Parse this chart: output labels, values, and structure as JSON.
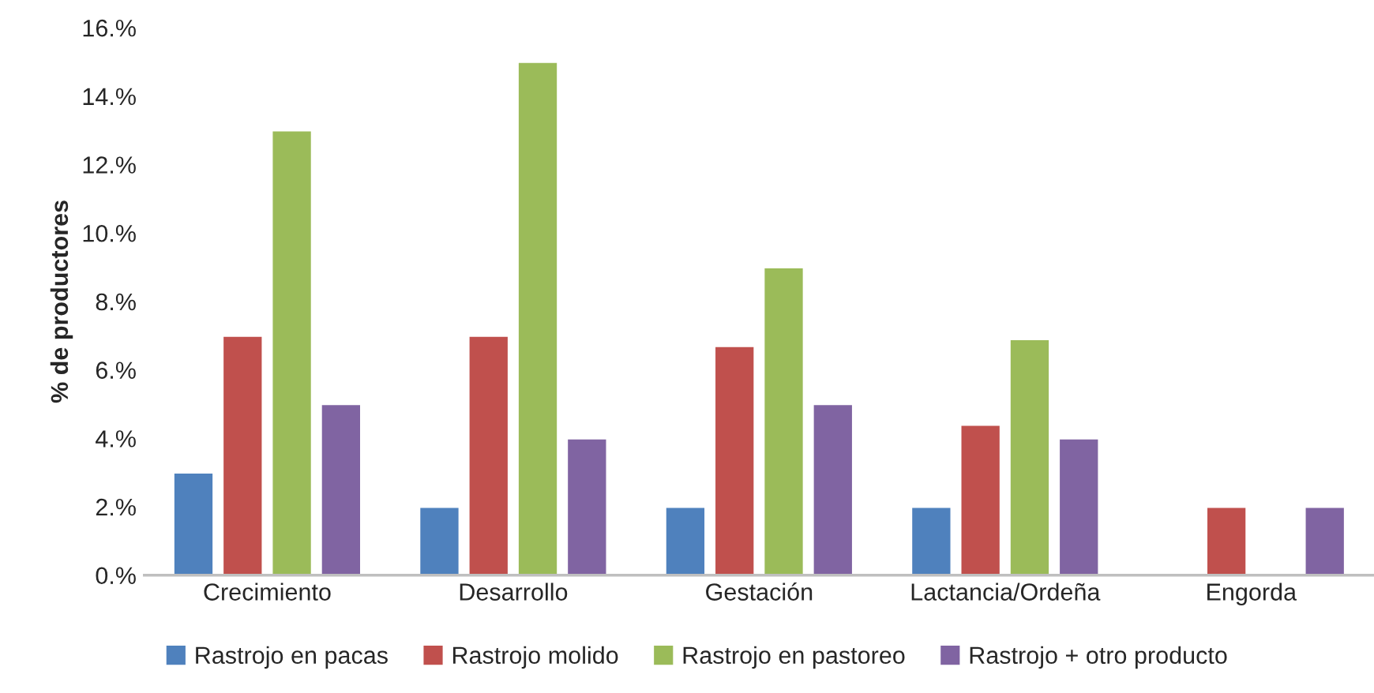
{
  "chart_data": {
    "type": "bar",
    "ylabel": "% de productores",
    "categories": [
      "Crecimiento",
      "Desarrollo",
      "Gestación",
      "Lactancia/Ordeña",
      "Engorda"
    ],
    "series": [
      {
        "name": "Rastrojo en pacas",
        "color": "#4f81bd",
        "values": [
          3,
          2,
          2,
          2,
          null
        ]
      },
      {
        "name": "Rastrojo molido",
        "color": "#c0504d",
        "values": [
          7,
          7,
          6.7,
          4.4,
          2
        ]
      },
      {
        "name": "Rastrojo en pastoreo",
        "color": "#9bbb59",
        "values": [
          13,
          15,
          9,
          6.9,
          null
        ]
      },
      {
        "name": "Rastrojo + otro producto",
        "color": "#8064a2",
        "values": [
          5,
          4,
          5,
          4,
          2
        ]
      }
    ],
    "ylim": [
      0,
      16
    ],
    "yticks": [
      {
        "value": 0,
        "label": "0.%"
      },
      {
        "value": 2,
        "label": "2.%"
      },
      {
        "value": 4,
        "label": "4.%"
      },
      {
        "value": 6,
        "label": "6.%"
      },
      {
        "value": 8,
        "label": "8.%"
      },
      {
        "value": 10,
        "label": "10.%"
      },
      {
        "value": 12,
        "label": "12.%"
      },
      {
        "value": 14,
        "label": "14.%"
      },
      {
        "value": 16,
        "label": "16.%"
      }
    ],
    "grid": false,
    "legend": "bottom"
  }
}
